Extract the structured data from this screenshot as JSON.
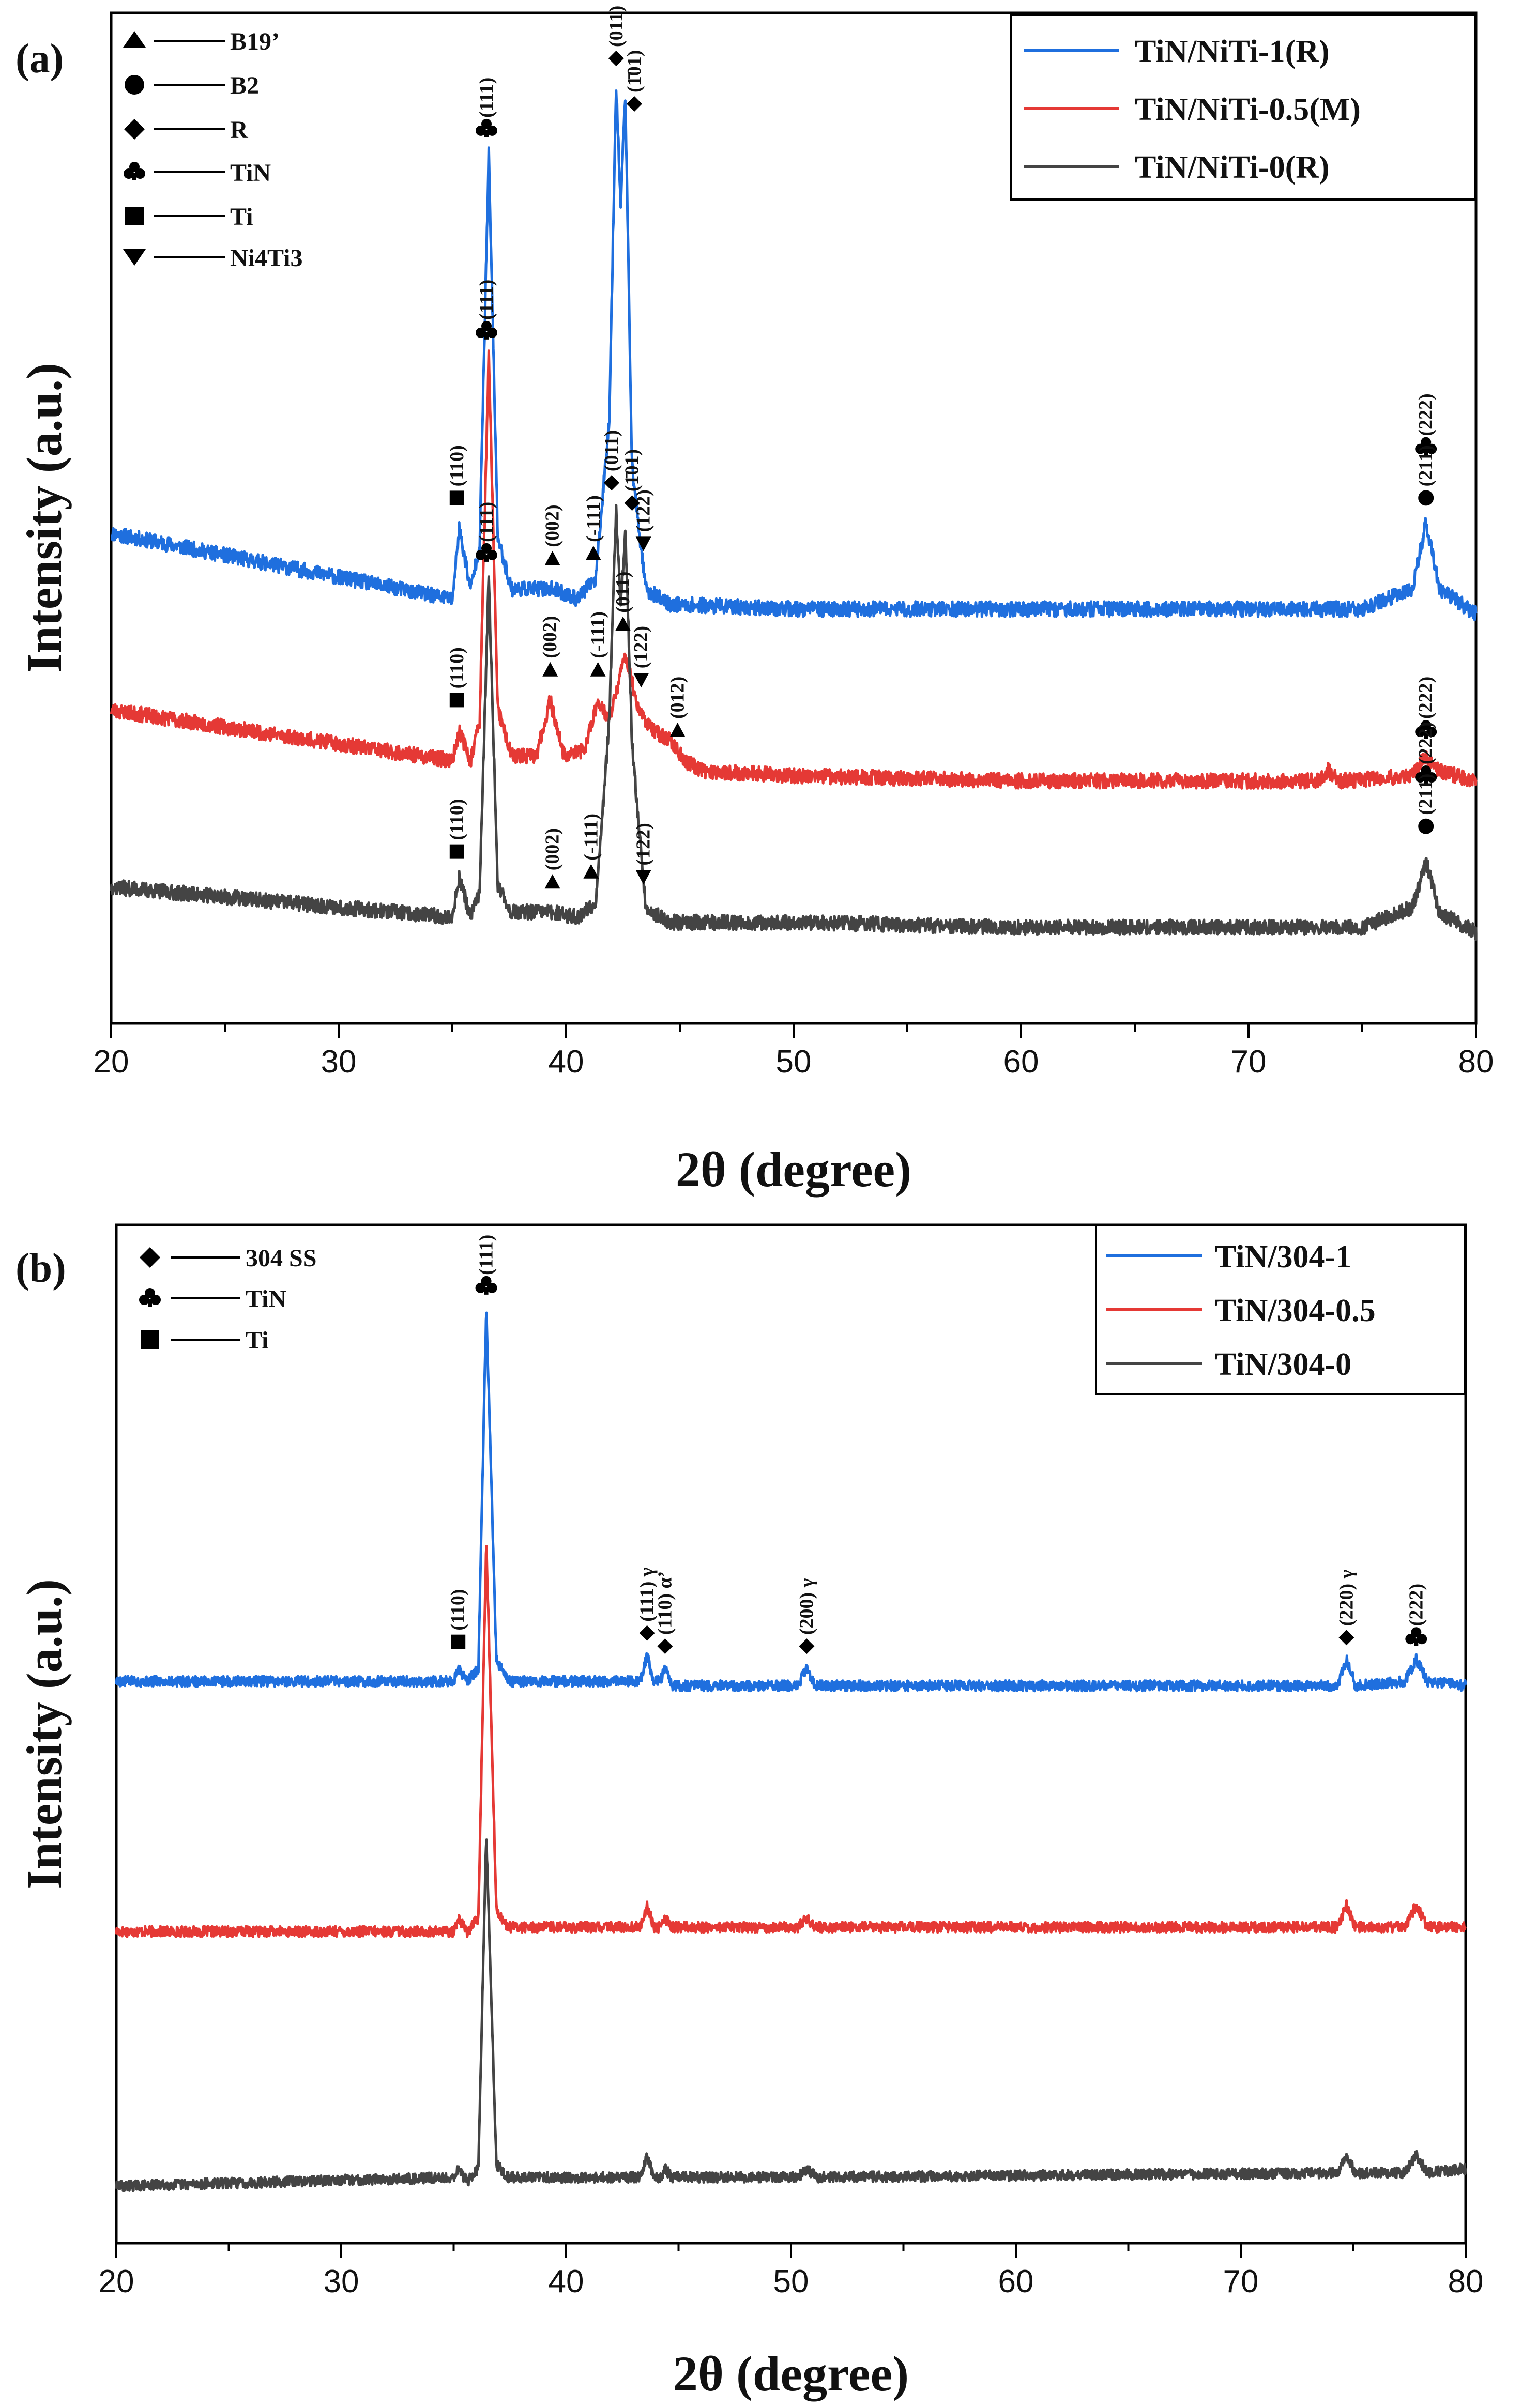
{
  "chart_data": [
    {
      "panel_label": "(a)",
      "type": "line",
      "xlabel": "2θ (degree)",
      "ylabel": "Intensity (a.u.)",
      "xlim": [
        20,
        80
      ],
      "xticks": [
        20,
        30,
        40,
        50,
        60,
        70,
        80
      ],
      "legend_position": "top-right",
      "series": [
        {
          "name": "TiN/NiTi-1(R)",
          "color": "#1f6fde",
          "baseline": 0.8,
          "noise_amp": 0.015,
          "seed": 11,
          "points": [
            [
              20,
              0.97
            ],
            [
              35,
              0.84
            ],
            [
              35.3,
              0.98
            ],
            [
              35.8,
              0.86
            ],
            [
              36.2,
              0.95
            ],
            [
              36.6,
              1.72
            ],
            [
              37.0,
              0.96
            ],
            [
              37.6,
              0.86
            ],
            [
              39.4,
              0.86
            ],
            [
              40.5,
              0.84
            ],
            [
              41.3,
              0.88
            ],
            [
              41.9,
              1.2
            ],
            [
              42.2,
              1.86
            ],
            [
              42.4,
              1.62
            ],
            [
              42.6,
              1.84
            ],
            [
              42.9,
              1.1
            ],
            [
              43.5,
              0.86
            ],
            [
              44.5,
              0.83
            ],
            [
              50,
              0.82
            ],
            [
              60,
              0.82
            ],
            [
              75,
              0.82
            ],
            [
              77.2,
              0.86
            ],
            [
              77.8,
              0.99
            ],
            [
              78.4,
              0.86
            ],
            [
              80,
              0.81
            ]
          ]
        },
        {
          "name": "TiN/NiTi-0.5(M)",
          "color": "#e53935",
          "baseline": 0.5,
          "noise_amp": 0.015,
          "seed": 23,
          "points": [
            [
              20,
              0.62
            ],
            [
              35,
              0.52
            ],
            [
              35.3,
              0.58
            ],
            [
              35.8,
              0.52
            ],
            [
              36.2,
              0.6
            ],
            [
              36.6,
              1.32
            ],
            [
              37.0,
              0.62
            ],
            [
              37.6,
              0.53
            ],
            [
              38.7,
              0.53
            ],
            [
              39.3,
              0.64
            ],
            [
              39.9,
              0.53
            ],
            [
              40.8,
              0.54
            ],
            [
              41.4,
              0.64
            ],
            [
              41.9,
              0.6
            ],
            [
              42.6,
              0.73
            ],
            [
              43.2,
              0.62
            ],
            [
              43.8,
              0.58
            ],
            [
              44.6,
              0.56
            ],
            [
              45.2,
              0.52
            ],
            [
              46,
              0.5
            ],
            [
              50,
              0.49
            ],
            [
              60,
              0.48
            ],
            [
              73,
              0.48
            ],
            [
              73.5,
              0.5
            ],
            [
              74,
              0.48
            ],
            [
              77.2,
              0.49
            ],
            [
              77.8,
              0.53
            ],
            [
              78.4,
              0.5
            ],
            [
              80,
              0.48
            ]
          ]
        },
        {
          "name": "TiN/NiTi-0(R)",
          "color": "#444444",
          "baseline": 0.2,
          "noise_amp": 0.015,
          "seed": 37,
          "points": [
            [
              20,
              0.27
            ],
            [
              35,
              0.21
            ],
            [
              35.3,
              0.29
            ],
            [
              35.8,
              0.21
            ],
            [
              36.2,
              0.26
            ],
            [
              36.6,
              0.88
            ],
            [
              37.0,
              0.27
            ],
            [
              37.6,
              0.22
            ],
            [
              39.4,
              0.22
            ],
            [
              40.5,
              0.21
            ],
            [
              41.3,
              0.24
            ],
            [
              41.9,
              0.6
            ],
            [
              42.2,
              1.02
            ],
            [
              42.4,
              0.82
            ],
            [
              42.6,
              0.98
            ],
            [
              42.9,
              0.55
            ],
            [
              43.5,
              0.23
            ],
            [
              44.5,
              0.2
            ],
            [
              50,
              0.2
            ],
            [
              60,
              0.19
            ],
            [
              75,
              0.19
            ],
            [
              77.2,
              0.23
            ],
            [
              77.8,
              0.32
            ],
            [
              78.4,
              0.22
            ],
            [
              80,
              0.18
            ]
          ]
        }
      ],
      "phase_key": [
        {
          "marker": "triangle-up",
          "label": "B19’"
        },
        {
          "marker": "circle",
          "label": "B2"
        },
        {
          "marker": "diamond",
          "label": "R"
        },
        {
          "marker": "club",
          "label": "TiN"
        },
        {
          "marker": "square",
          "label": "Ti"
        },
        {
          "marker": "triangle-down",
          "label": "Ni4Ti3"
        }
      ],
      "peak_annotations": [
        {
          "x": 35.2,
          "y": 1.04,
          "marker": "square",
          "text": "(110)"
        },
        {
          "x": 36.5,
          "y": 1.77,
          "marker": "club",
          "text": "(111)"
        },
        {
          "x": 39.4,
          "y": 0.92,
          "marker": "triangle-up",
          "text": "(002)"
        },
        {
          "x": 41.2,
          "y": 0.93,
          "marker": "triangle-up",
          "text": "(-111)"
        },
        {
          "x": 42.2,
          "y": 1.91,
          "marker": "diamond",
          "text": "(011)"
        },
        {
          "x": 43.0,
          "y": 1.82,
          "marker": "diamond",
          "text": "(1̄01)"
        },
        {
          "x": 43.4,
          "y": 0.95,
          "marker": "triangle-down",
          "text": "(122)"
        },
        {
          "x": 77.8,
          "y": 1.14,
          "marker": "club",
          "text": "(222)"
        },
        {
          "x": 77.8,
          "y": 1.04,
          "marker": "circle",
          "text": "(211)"
        },
        {
          "x": 36.5,
          "y": 1.37,
          "marker": "club",
          "text": "(111)"
        },
        {
          "x": 35.2,
          "y": 0.64,
          "marker": "square",
          "text": "(110)"
        },
        {
          "x": 39.3,
          "y": 0.7,
          "marker": "triangle-up",
          "text": "(002)"
        },
        {
          "x": 41.4,
          "y": 0.7,
          "marker": "triangle-up",
          "text": "(-111)"
        },
        {
          "x": 42.5,
          "y": 0.79,
          "marker": "triangle-up",
          "text": "(011)"
        },
        {
          "x": 43.3,
          "y": 0.68,
          "marker": "triangle-down",
          "text": "(122)"
        },
        {
          "x": 44.9,
          "y": 0.58,
          "marker": "triangle-up",
          "text": "(012)"
        },
        {
          "x": 77.8,
          "y": 0.58,
          "marker": "club",
          "text": "(222)"
        },
        {
          "x": 36.5,
          "y": 0.93,
          "marker": "club",
          "text": "(111)"
        },
        {
          "x": 35.2,
          "y": 0.34,
          "marker": "square",
          "text": "(110)"
        },
        {
          "x": 39.4,
          "y": 0.28,
          "marker": "triangle-up",
          "text": "(002)"
        },
        {
          "x": 41.1,
          "y": 0.3,
          "marker": "triangle-up",
          "text": "(-111)"
        },
        {
          "x": 42.0,
          "y": 1.07,
          "marker": "diamond",
          "text": "(011)"
        },
        {
          "x": 42.9,
          "y": 1.03,
          "marker": "diamond",
          "text": "(1̄01)"
        },
        {
          "x": 43.4,
          "y": 0.29,
          "marker": "triangle-down",
          "text": "(122)"
        },
        {
          "x": 77.8,
          "y": 0.49,
          "marker": "club",
          "text": "(222)"
        },
        {
          "x": 77.8,
          "y": 0.39,
          "marker": "circle",
          "text": "(211)"
        }
      ]
    },
    {
      "panel_label": "(b)",
      "type": "line",
      "xlabel": "2θ (degree)",
      "ylabel": "Intensity (a.u.)",
      "xlim": [
        20,
        80
      ],
      "xticks": [
        20,
        30,
        40,
        50,
        60,
        70,
        80
      ],
      "legend_position": "top-right",
      "series": [
        {
          "name": "TiN/304-1",
          "color": "#1f6fde",
          "baseline": 1.27,
          "noise_amp": 0.012,
          "seed": 5,
          "points": [
            [
              20,
              1.28
            ],
            [
              35,
              1.28
            ],
            [
              35.2,
              1.31
            ],
            [
              35.6,
              1.28
            ],
            [
              36.1,
              1.31
            ],
            [
              36.45,
              2.13
            ],
            [
              36.9,
              1.33
            ],
            [
              37.4,
              1.28
            ],
            [
              43.3,
              1.28
            ],
            [
              43.6,
              1.34
            ],
            [
              43.9,
              1.28
            ],
            [
              44.2,
              1.28
            ],
            [
              44.4,
              1.31
            ],
            [
              44.7,
              1.27
            ],
            [
              50.3,
              1.27
            ],
            [
              50.7,
              1.31
            ],
            [
              51.1,
              1.27
            ],
            [
              74.3,
              1.27
            ],
            [
              74.7,
              1.33
            ],
            [
              75.1,
              1.27
            ],
            [
              77.3,
              1.28
            ],
            [
              77.8,
              1.33
            ],
            [
              78.3,
              1.28
            ],
            [
              80,
              1.27
            ]
          ]
        },
        {
          "name": "TiN/304-0.5",
          "color": "#e53935",
          "baseline": 0.71,
          "noise_amp": 0.012,
          "seed": 17,
          "points": [
            [
              20,
              0.71
            ],
            [
              35,
              0.71
            ],
            [
              35.2,
              0.74
            ],
            [
              35.6,
              0.71
            ],
            [
              36.1,
              0.74
            ],
            [
              36.45,
              1.6
            ],
            [
              36.9,
              0.76
            ],
            [
              37.4,
              0.72
            ],
            [
              43.3,
              0.72
            ],
            [
              43.6,
              0.77
            ],
            [
              43.9,
              0.72
            ],
            [
              44.2,
              0.72
            ],
            [
              44.4,
              0.74
            ],
            [
              44.7,
              0.72
            ],
            [
              50.3,
              0.72
            ],
            [
              50.7,
              0.74
            ],
            [
              51.1,
              0.72
            ],
            [
              74.3,
              0.72
            ],
            [
              74.7,
              0.77
            ],
            [
              75.1,
              0.72
            ],
            [
              77.3,
              0.72
            ],
            [
              77.8,
              0.77
            ],
            [
              78.3,
              0.72
            ],
            [
              80,
              0.72
            ]
          ]
        },
        {
          "name": "TiN/304-0",
          "color": "#444444",
          "baseline": 0.14,
          "noise_amp": 0.012,
          "seed": 29,
          "points": [
            [
              20,
              0.13
            ],
            [
              35,
              0.15
            ],
            [
              35.2,
              0.17
            ],
            [
              35.6,
              0.14
            ],
            [
              36.1,
              0.17
            ],
            [
              36.45,
              0.93
            ],
            [
              36.9,
              0.18
            ],
            [
              37.4,
              0.15
            ],
            [
              43.3,
              0.15
            ],
            [
              43.6,
              0.2
            ],
            [
              43.9,
              0.15
            ],
            [
              44.2,
              0.15
            ],
            [
              44.4,
              0.17
            ],
            [
              44.7,
              0.15
            ],
            [
              50.3,
              0.15
            ],
            [
              50.7,
              0.17
            ],
            [
              51.1,
              0.15
            ],
            [
              74.3,
              0.16
            ],
            [
              74.7,
              0.2
            ],
            [
              75.1,
              0.16
            ],
            [
              77.3,
              0.16
            ],
            [
              77.8,
              0.2
            ],
            [
              78.3,
              0.16
            ],
            [
              80,
              0.17
            ]
          ]
        }
      ],
      "phase_key": [
        {
          "marker": "diamond",
          "label": "304 SS"
        },
        {
          "marker": "club",
          "label": "TiN"
        },
        {
          "marker": "square",
          "label": "Ti"
        }
      ],
      "peak_annotations": [
        {
          "x": 36.45,
          "y": 2.18,
          "marker": "club",
          "text": "(111)"
        },
        {
          "x": 35.2,
          "y": 1.37,
          "marker": "square",
          "text": "(110)"
        },
        {
          "x": 43.6,
          "y": 1.39,
          "marker": "diamond",
          "text": "(111) γ"
        },
        {
          "x": 44.4,
          "y": 1.36,
          "marker": "diamond",
          "text": "(110) α’"
        },
        {
          "x": 50.7,
          "y": 1.36,
          "marker": "diamond",
          "text": "(200) γ"
        },
        {
          "x": 74.7,
          "y": 1.38,
          "marker": "diamond",
          "text": "(220) γ"
        },
        {
          "x": 77.8,
          "y": 1.38,
          "marker": "club",
          "text": "(222)"
        }
      ]
    }
  ]
}
